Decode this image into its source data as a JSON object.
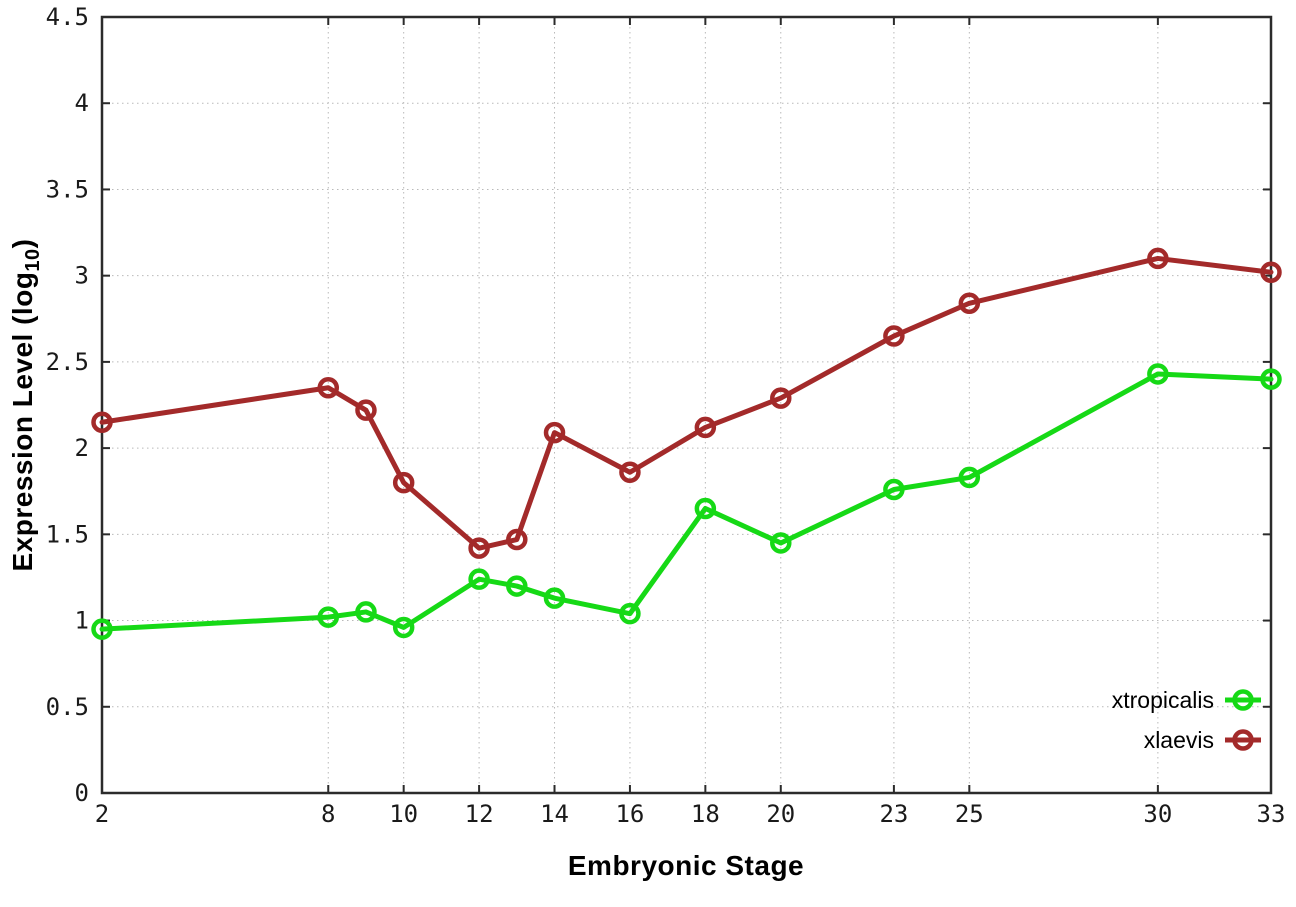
{
  "chart_data": {
    "type": "line",
    "title": "",
    "xlabel": "Embryonic Stage",
    "ylabel": {
      "text": "Expression Level (log",
      "subscript": "10",
      "suffix": ")"
    },
    "x": [
      2,
      8,
      9,
      10,
      12,
      13,
      14,
      16,
      18,
      20,
      23,
      25,
      30,
      33
    ],
    "series": [
      {
        "name": "xtropicalis",
        "color": "#16d916",
        "marker": "open-circle",
        "values": [
          0.95,
          1.02,
          1.05,
          0.96,
          1.24,
          1.2,
          1.13,
          1.04,
          1.65,
          1.45,
          1.76,
          1.83,
          2.43,
          2.4
        ]
      },
      {
        "name": "xlaevis",
        "color": "#a32a2a",
        "marker": "open-circle",
        "values": [
          2.15,
          2.35,
          2.22,
          1.8,
          1.42,
          1.47,
          2.09,
          1.86,
          2.12,
          2.29,
          2.65,
          2.84,
          3.1,
          3.02
        ]
      }
    ],
    "xlim": [
      2,
      33
    ],
    "ylim": [
      0,
      4.5
    ],
    "xticks": [
      2,
      8,
      10,
      12,
      14,
      16,
      18,
      20,
      23,
      25,
      30,
      33
    ],
    "yticks": [
      0,
      0.5,
      1,
      1.5,
      2,
      2.5,
      3,
      3.5,
      4,
      4.5
    ],
    "grid": true,
    "legend_position": "bottom-right"
  },
  "styles": {
    "border_color": "#2b2b2b",
    "grid_color": "#b9b9b9",
    "tick_color": "#2b2b2b",
    "background": "#ffffff"
  }
}
